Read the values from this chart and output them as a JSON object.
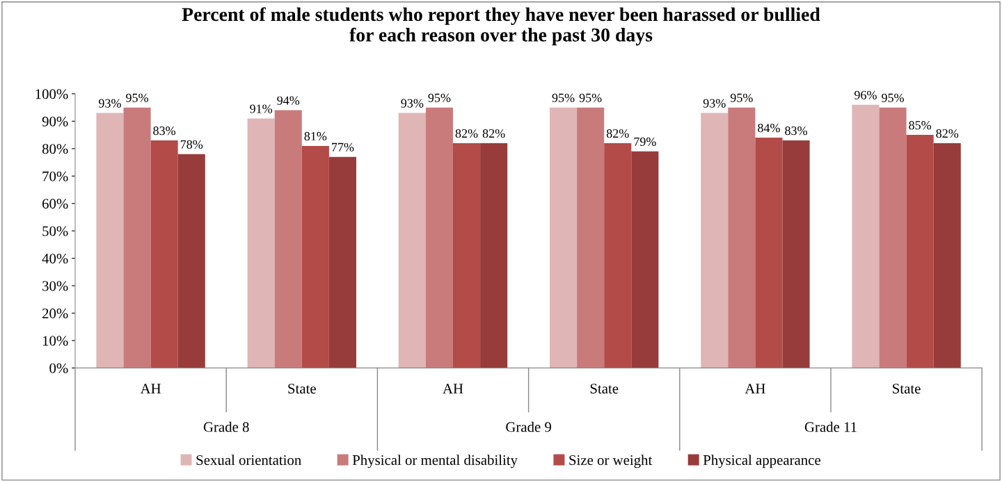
{
  "chart_data": {
    "type": "bar",
    "title": "Percent of male students who report they have never been harassed or bullied\nfor each reason over the past 30 days",
    "categories": [
      "AH",
      "State",
      "AH",
      "State",
      "AH",
      "State"
    ],
    "annotations": [
      "Grade 8",
      "Grade 9",
      "Grade 11"
    ],
    "series": [
      {
        "name": "Sexual orientation",
        "color": "#dfb5b5",
        "values": [
          93,
          91,
          93,
          95,
          93,
          96
        ],
        "value_labels": [
          "93%",
          "91%",
          "93%",
          "95%",
          "93%",
          "96%"
        ]
      },
      {
        "name": "Physical or mental disability",
        "color": "#c97b7b",
        "values": [
          95,
          94,
          95,
          95,
          95,
          95
        ],
        "value_labels": [
          "95%",
          "94%",
          "95%",
          "95%",
          "95%",
          "95%"
        ]
      },
      {
        "name": "Size or weight",
        "color": "#b34b48",
        "values": [
          83,
          81,
          82,
          82,
          84,
          85
        ],
        "value_labels": [
          "83%",
          "81%",
          "82%",
          "82%",
          "84%",
          "85%"
        ]
      },
      {
        "name": "Physical appearance",
        "color": "#983b3b",
        "values": [
          78,
          77,
          82,
          79,
          83,
          82
        ],
        "value_labels": [
          "78%",
          "77%",
          "82%",
          "79%",
          "83%",
          "82%"
        ]
      }
    ],
    "ylim": [
      0,
      100
    ],
    "yticks": [
      {
        "value": 0,
        "label": "0%"
      },
      {
        "value": 10,
        "label": "10%"
      },
      {
        "value": 20,
        "label": "20%"
      },
      {
        "value": 30,
        "label": "30%"
      },
      {
        "value": 40,
        "label": "40%"
      },
      {
        "value": 50,
        "label": "50%"
      },
      {
        "value": 60,
        "label": "60%"
      },
      {
        "value": 70,
        "label": "70%"
      },
      {
        "value": 80,
        "label": "80%"
      },
      {
        "value": 90,
        "label": "90%"
      },
      {
        "value": 100,
        "label": "100%"
      }
    ],
    "grid": false,
    "legend": "bottom"
  }
}
